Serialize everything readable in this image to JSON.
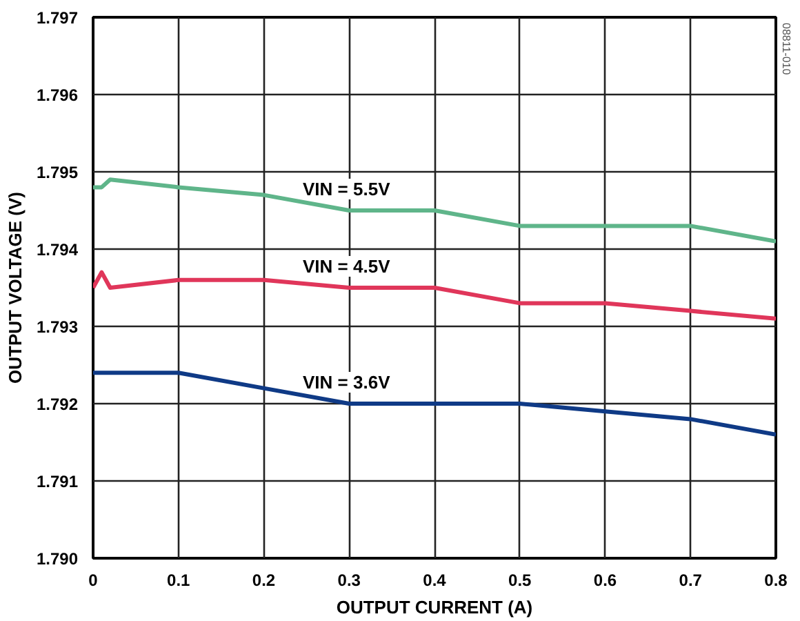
{
  "chart_data": {
    "type": "line",
    "xlabel": "OUTPUT CURRENT (A)",
    "ylabel": "OUTPUT VOLTAGE (V)",
    "x": [
      0,
      0.01,
      0.02,
      0.1,
      0.2,
      0.3,
      0.4,
      0.5,
      0.6,
      0.7,
      0.8
    ],
    "series": [
      {
        "name": "VIN = 5.5V",
        "color": "#5fb58a",
        "values": [
          1.7948,
          1.7948,
          1.7949,
          1.7948,
          1.7947,
          1.7945,
          1.7945,
          1.7943,
          1.7943,
          1.7943,
          1.7941
        ]
      },
      {
        "name": "VIN = 4.5V",
        "color": "#e0365a",
        "values": [
          1.7935,
          1.7937,
          1.7935,
          1.7936,
          1.7936,
          1.7935,
          1.7935,
          1.7933,
          1.7933,
          1.7932,
          1.7931
        ]
      },
      {
        "name": "VIN = 3.6V",
        "color": "#0f3a86",
        "values": [
          1.7924,
          1.7924,
          1.7924,
          1.7924,
          1.7922,
          1.792,
          1.792,
          1.792,
          1.7919,
          1.7918,
          1.7916
        ]
      }
    ],
    "xlim": [
      0,
      0.8
    ],
    "xticks": [
      0,
      0.1,
      0.2,
      0.3,
      0.4,
      0.5,
      0.6,
      0.7,
      0.8
    ],
    "ylim": [
      1.79,
      1.797
    ],
    "yticks": [
      {
        "value": 1.79,
        "label": "1.790"
      },
      {
        "value": 1.791,
        "label": "1.791"
      },
      {
        "value": 1.792,
        "label": "1.792"
      },
      {
        "value": 1.793,
        "label": "1.793"
      },
      {
        "value": 1.794,
        "label": "1.794"
      },
      {
        "value": 1.795,
        "label": "1.795"
      },
      {
        "value": 1.796,
        "label": "1.796"
      },
      {
        "value": 1.797,
        "label": "1.797"
      }
    ],
    "grid": true,
    "legend": false,
    "marker": "none",
    "line_style": "solid",
    "annotations": [
      "08811-010"
    ]
  }
}
